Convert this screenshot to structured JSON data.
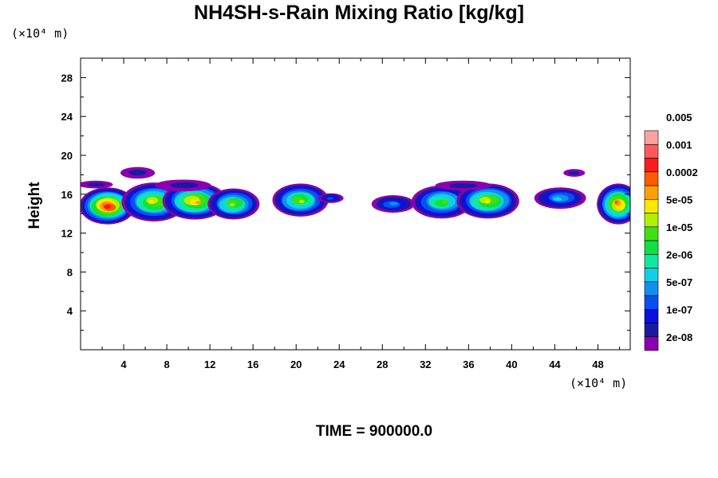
{
  "chart_data": {
    "type": "heatmap",
    "title": "NH4SH-s-Rain Mixing Ratio [kg/kg]",
    "ylabel": "Height",
    "xunit": "(×10⁴ m)",
    "yunit": "(×10⁴ m)",
    "time_label": "TIME = 900000.0",
    "xlim": [
      0,
      51
    ],
    "ylim": [
      0,
      30
    ],
    "xticks": [
      4,
      8,
      12,
      16,
      20,
      24,
      28,
      32,
      36,
      40,
      44,
      48
    ],
    "yticks": [
      4,
      8,
      12,
      16,
      20,
      24,
      28
    ],
    "colorbar": {
      "colors": [
        "#8a00b0",
        "#1a1aa0",
        "#0a10e0",
        "#0a50f0",
        "#0f90f0",
        "#10d0e8",
        "#10e8a0",
        "#10e040",
        "#40e010",
        "#b0f000",
        "#ffe800",
        "#ffa000",
        "#ff5a00",
        "#ff1a1a",
        "#ff5a5a",
        "#ffa0a0"
      ],
      "labels": [
        "2e-08",
        "1e-07",
        "5e-07",
        "2e-06",
        "1e-05",
        "5e-05",
        "0.0002",
        "0.001",
        "0.005"
      ]
    },
    "cloud_regions": [
      {
        "x": 2.5,
        "y": 14.8,
        "rx": 2.6,
        "ry": 1.9,
        "peak": 14
      },
      {
        "x": 6.8,
        "y": 15.2,
        "rx": 3.0,
        "ry": 2.0,
        "peak": 10
      },
      {
        "x": 10.6,
        "y": 15.3,
        "rx": 3.0,
        "ry": 1.9,
        "peak": 11
      },
      {
        "x": 14.2,
        "y": 15.0,
        "rx": 2.4,
        "ry": 1.6,
        "peak": 9
      },
      {
        "x": 20.4,
        "y": 15.4,
        "rx": 2.6,
        "ry": 1.7,
        "peak": 9
      },
      {
        "x": 23.2,
        "y": 15.6,
        "rx": 1.2,
        "ry": 0.5,
        "peak": 3
      },
      {
        "x": 29.0,
        "y": 15.0,
        "rx": 2.0,
        "ry": 0.9,
        "peak": 4
      },
      {
        "x": 33.5,
        "y": 15.2,
        "rx": 2.8,
        "ry": 1.7,
        "peak": 8
      },
      {
        "x": 37.8,
        "y": 15.3,
        "rx": 2.9,
        "ry": 1.8,
        "peak": 10
      },
      {
        "x": 44.5,
        "y": 15.6,
        "rx": 2.4,
        "ry": 1.1,
        "peak": 5
      },
      {
        "x": 49.9,
        "y": 15.0,
        "rx": 2.0,
        "ry": 2.1,
        "peak": 12
      },
      {
        "x": 5.3,
        "y": 18.2,
        "rx": 1.6,
        "ry": 0.6,
        "peak": 1
      },
      {
        "x": 9.5,
        "y": 16.9,
        "rx": 2.6,
        "ry": 0.6,
        "peak": 1
      },
      {
        "x": 1.4,
        "y": 17.0,
        "rx": 1.6,
        "ry": 0.4,
        "peak": 1
      },
      {
        "x": 35.5,
        "y": 16.9,
        "rx": 2.6,
        "ry": 0.5,
        "peak": 1
      },
      {
        "x": 45.8,
        "y": 18.2,
        "rx": 1.0,
        "ry": 0.4,
        "peak": 1
      }
    ]
  }
}
